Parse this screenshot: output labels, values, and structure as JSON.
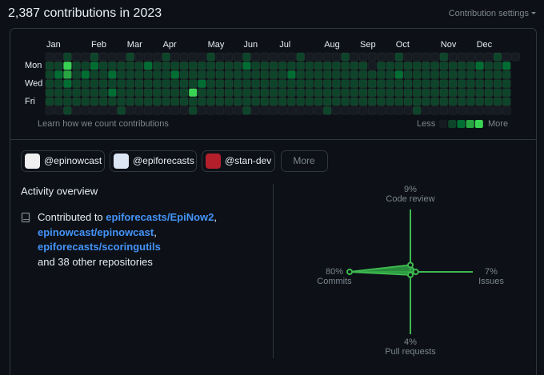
{
  "header": {
    "title": "2,387 contributions in 2023",
    "settings": "Contribution settings"
  },
  "contributions": {
    "months": [
      "Jan",
      "Feb",
      "Mar",
      "Apr",
      "May",
      "Jun",
      "Jul",
      "Aug",
      "Sep",
      "Oct",
      "Nov",
      "Dec"
    ],
    "day_labels": [
      "Mon",
      "Wed",
      "Fri"
    ],
    "level_colors": [
      "#161b22",
      "#0e4429",
      "#006d32",
      "#26a641",
      "#39d353"
    ],
    "levels": [
      [
        0,
        0,
        1,
        0,
        0,
        1,
        0,
        0,
        0,
        1,
        0,
        0,
        0,
        1,
        0,
        0,
        0,
        0,
        1,
        0,
        0,
        0,
        1,
        0,
        0,
        0,
        0,
        0,
        1,
        0,
        0,
        0,
        0,
        1,
        0,
        0,
        0,
        0,
        0,
        1,
        0,
        0,
        0,
        0,
        1,
        0,
        0,
        0,
        0,
        0,
        1,
        0,
        0
      ],
      [
        1,
        1,
        4,
        1,
        1,
        2,
        1,
        1,
        1,
        1,
        1,
        2,
        1,
        1,
        1,
        1,
        1,
        1,
        1,
        1,
        1,
        1,
        2,
        1,
        1,
        1,
        1,
        1,
        1,
        1,
        1,
        1,
        1,
        1,
        1,
        1,
        0,
        1,
        1,
        1,
        1,
        1,
        1,
        1,
        1,
        1,
        1,
        1,
        2,
        1,
        1,
        2
      ],
      [
        1,
        2,
        3,
        1,
        2,
        1,
        1,
        2,
        1,
        1,
        1,
        1,
        1,
        1,
        2,
        1,
        1,
        1,
        1,
        1,
        1,
        1,
        1,
        1,
        1,
        1,
        1,
        2,
        1,
        1,
        1,
        1,
        1,
        1,
        1,
        1,
        1,
        1,
        1,
        2,
        1,
        1,
        1,
        1,
        1,
        1,
        1,
        1,
        1,
        1,
        1,
        1
      ],
      [
        1,
        1,
        2,
        1,
        1,
        1,
        1,
        1,
        1,
        1,
        1,
        1,
        1,
        1,
        1,
        1,
        1,
        2,
        1,
        1,
        1,
        1,
        1,
        1,
        1,
        1,
        1,
        1,
        1,
        1,
        1,
        1,
        1,
        1,
        1,
        1,
        1,
        1,
        1,
        1,
        1,
        1,
        1,
        1,
        1,
        1,
        1,
        1,
        1,
        1,
        1,
        1
      ],
      [
        1,
        1,
        1,
        1,
        1,
        1,
        1,
        2,
        1,
        1,
        1,
        1,
        1,
        1,
        1,
        1,
        4,
        1,
        1,
        1,
        1,
        1,
        1,
        1,
        1,
        1,
        1,
        1,
        1,
        1,
        1,
        1,
        1,
        1,
        1,
        1,
        1,
        1,
        1,
        1,
        1,
        1,
        1,
        1,
        1,
        1,
        1,
        1,
        1,
        1,
        1,
        1
      ],
      [
        1,
        1,
        1,
        1,
        1,
        1,
        1,
        1,
        1,
        1,
        1,
        1,
        1,
        1,
        1,
        1,
        1,
        1,
        1,
        1,
        1,
        1,
        1,
        1,
        1,
        1,
        1,
        1,
        1,
        1,
        1,
        1,
        1,
        1,
        1,
        1,
        1,
        1,
        1,
        1,
        1,
        1,
        1,
        1,
        1,
        1,
        1,
        1,
        1,
        1,
        1,
        1
      ],
      [
        0,
        0,
        1,
        0,
        0,
        0,
        0,
        0,
        1,
        0,
        0,
        0,
        0,
        0,
        0,
        0,
        1,
        0,
        0,
        0,
        0,
        0,
        1,
        0,
        0,
        0,
        0,
        0,
        0,
        0,
        0,
        1,
        0,
        0,
        0,
        0,
        0,
        0,
        0,
        0,
        0,
        1,
        0,
        0,
        0,
        0,
        0,
        0,
        0,
        0,
        0,
        0
      ]
    ],
    "learn_link": "Learn how we count contributions",
    "legend_less": "Less",
    "legend_more": "More"
  },
  "organizations": [
    "@epinowcast",
    "@epiforecasts",
    "@stan-dev"
  ],
  "more_button": "More",
  "activity": {
    "title": "Activity overview",
    "prefix": "Contributed to",
    "repositories": [
      "epiforecasts/EpiNow2",
      "epinowcast/epinowcast",
      "epiforecasts/scoringutils"
    ],
    "separator": ",",
    "others": "and 38 other repositories"
  },
  "chart_data": {
    "type": "radar",
    "color": "#3fb950",
    "categories": [
      "Code review",
      "Issues",
      "Pull requests",
      "Commits"
    ],
    "values": [
      9,
      7,
      4,
      80
    ],
    "value_labels": [
      "9%",
      "7%",
      "4%",
      "80%"
    ]
  }
}
